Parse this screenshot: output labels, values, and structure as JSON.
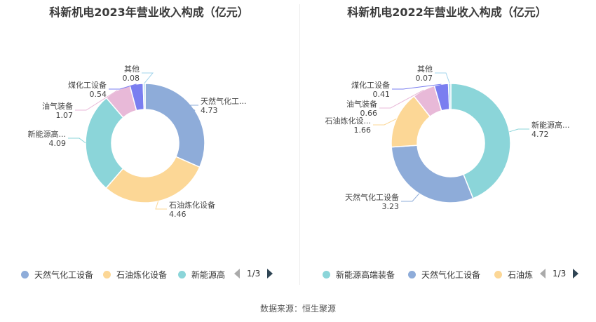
{
  "source": "数据来源：恒生聚源",
  "chart_data": [
    {
      "type": "pie",
      "title": "科新机电2023年营业收入构成（亿元）",
      "categories": [
        "天然气化工设备",
        "石油炼化设备",
        "新能源高端装备",
        "油气装备",
        "煤化工设备",
        "其他"
      ],
      "values": [
        4.73,
        4.46,
        4.09,
        1.07,
        0.54,
        0.08
      ],
      "slice_labels": [
        "天然气化工...",
        "石油炼化设备",
        "新能源高...",
        "油气装备",
        "煤化工设备",
        "其他"
      ],
      "value_labels": [
        "4.73",
        "4.46",
        "4.09",
        "1.07",
        "0.54",
        "0.08"
      ],
      "colors": [
        "#8eacd9",
        "#fcd796",
        "#8bd5d9",
        "#e8b9d8",
        "#7a7ef0",
        "#a3d4ec"
      ],
      "legend": {
        "position": "bottom",
        "entries": [
          "天然气化工设备",
          "石油炼化设备",
          "新能源高"
        ],
        "page": "1/3"
      }
    },
    {
      "type": "pie",
      "title": "科新机电2022年营业收入构成（亿元）",
      "categories": [
        "新能源高端装备",
        "天然气化工设备",
        "石油炼化设备",
        "油气装备",
        "煤化工设备",
        "其他"
      ],
      "values": [
        4.72,
        3.23,
        1.66,
        0.66,
        0.41,
        0.07
      ],
      "slice_labels": [
        "新能源高...",
        "天然气化工设备",
        "石油炼化设...",
        "油气装备",
        "煤化工设备",
        "其他"
      ],
      "value_labels": [
        "4.72",
        "3.23",
        "1.66",
        "0.66",
        "0.41",
        "0.07"
      ],
      "colors": [
        "#8bd5d9",
        "#8eacd9",
        "#fcd796",
        "#e8b9d8",
        "#7a7ef0",
        "#a3d4ec"
      ],
      "legend": {
        "position": "bottom",
        "entries": [
          "新能源高端装备",
          "天然气化工设备",
          "石油炼"
        ],
        "page": "1/3"
      }
    }
  ]
}
